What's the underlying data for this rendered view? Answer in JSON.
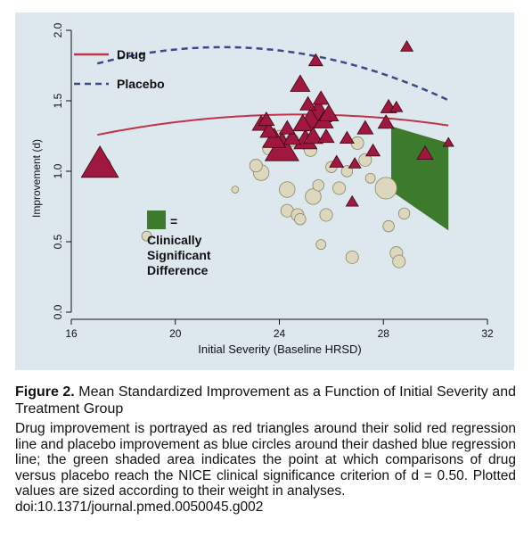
{
  "chart_data": {
    "type": "scatter",
    "xlabel": "Initial Severity (Baseline HRSD)",
    "ylabel": "Improvement (d)",
    "xlim": [
      16,
      32
    ],
    "ylim": [
      0,
      2
    ],
    "x_ticks": [
      16,
      20,
      24,
      28,
      32
    ],
    "y_ticks": [
      "0.0",
      "0.5",
      "1.0",
      "1.5",
      "2.0"
    ],
    "grid": false,
    "legend": {
      "placement": "top-left",
      "entries": [
        {
          "label": "Drug",
          "style": "solid",
          "color": "#c0334a"
        },
        {
          "label": "Placebo",
          "style": "dashed",
          "color": "#3a4a8a"
        }
      ]
    },
    "annotation": {
      "marker_text": "=",
      "lines": [
        "Clinically",
        "Significant",
        "Difference"
      ],
      "color": "#3c7a2c"
    },
    "shaded_region": {
      "x": [
        28.3,
        28.3,
        30.5,
        30.5
      ],
      "y": [
        1.32,
        0.86,
        0.58,
        1.2
      ],
      "color": "#3c7a2c"
    },
    "series": [
      {
        "name": "Drug",
        "marker": "triangle",
        "color": "#a01840",
        "regression": {
          "coef": [
            -0.06,
            0.118,
            -0.00238
          ],
          "x_range": [
            17,
            30.5
          ],
          "color": "#c0334a"
        },
        "points": [
          {
            "x": 17.1,
            "y": 1.04,
            "w": 9
          },
          {
            "x": 23.3,
            "y": 1.33,
            "w": 3.5
          },
          {
            "x": 23.5,
            "y": 1.36,
            "w": 3
          },
          {
            "x": 23.6,
            "y": 1.28,
            "w": 3.5
          },
          {
            "x": 23.8,
            "y": 1.22,
            "w": 5
          },
          {
            "x": 24.1,
            "y": 1.15,
            "w": 8
          },
          {
            "x": 24.3,
            "y": 1.3,
            "w": 3
          },
          {
            "x": 24.5,
            "y": 1.23,
            "w": 3.5
          },
          {
            "x": 24.8,
            "y": 1.61,
            "w": 4
          },
          {
            "x": 24.9,
            "y": 1.33,
            "w": 4
          },
          {
            "x": 25.0,
            "y": 1.21,
            "w": 5
          },
          {
            "x": 25.1,
            "y": 1.47,
            "w": 3
          },
          {
            "x": 25.2,
            "y": 1.36,
            "w": 5
          },
          {
            "x": 25.3,
            "y": 1.24,
            "w": 4
          },
          {
            "x": 25.4,
            "y": 1.78,
            "w": 2.5
          },
          {
            "x": 25.5,
            "y": 1.41,
            "w": 6
          },
          {
            "x": 25.6,
            "y": 1.51,
            "w": 3
          },
          {
            "x": 25.7,
            "y": 1.35,
            "w": 4
          },
          {
            "x": 25.8,
            "y": 1.24,
            "w": 3
          },
          {
            "x": 25.9,
            "y": 1.4,
            "w": 4
          },
          {
            "x": 26.2,
            "y": 1.06,
            "w": 2.5
          },
          {
            "x": 26.6,
            "y": 1.23,
            "w": 2.5
          },
          {
            "x": 26.8,
            "y": 0.78,
            "w": 2
          },
          {
            "x": 26.9,
            "y": 1.05,
            "w": 2
          },
          {
            "x": 27.3,
            "y": 1.3,
            "w": 3
          },
          {
            "x": 27.6,
            "y": 1.14,
            "w": 2.5
          },
          {
            "x": 28.1,
            "y": 1.34,
            "w": 3
          },
          {
            "x": 28.2,
            "y": 1.45,
            "w": 3
          },
          {
            "x": 28.5,
            "y": 1.45,
            "w": 2
          },
          {
            "x": 28.9,
            "y": 1.88,
            "w": 2
          },
          {
            "x": 29.6,
            "y": 1.12,
            "w": 3
          },
          {
            "x": 30.5,
            "y": 1.2,
            "w": 1.5
          }
        ]
      },
      {
        "name": "Placebo",
        "marker": "circle",
        "color": "#ddd8bd",
        "regression": {
          "coef": [
            -0.5,
            0.2182,
            -0.005
          ],
          "x_range": [
            17,
            30.5
          ],
          "color": "#3a4a8a"
        },
        "points": [
          {
            "x": 17.3,
            "y": 1.05,
            "w": 2.5
          },
          {
            "x": 18.9,
            "y": 0.54,
            "w": 2
          },
          {
            "x": 22.3,
            "y": 0.87,
            "w": 1
          },
          {
            "x": 23.1,
            "y": 1.04,
            "w": 3
          },
          {
            "x": 23.3,
            "y": 0.99,
            "w": 4
          },
          {
            "x": 23.6,
            "y": 1.16,
            "w": 3
          },
          {
            "x": 23.9,
            "y": 1.2,
            "w": 3
          },
          {
            "x": 24.0,
            "y": 1.25,
            "w": 2.5
          },
          {
            "x": 24.3,
            "y": 0.87,
            "w": 4
          },
          {
            "x": 24.3,
            "y": 0.72,
            "w": 3
          },
          {
            "x": 24.5,
            "y": 1.22,
            "w": 3
          },
          {
            "x": 24.7,
            "y": 0.69,
            "w": 3
          },
          {
            "x": 24.8,
            "y": 0.66,
            "w": 2.5
          },
          {
            "x": 25.0,
            "y": 1.2,
            "w": 3
          },
          {
            "x": 25.2,
            "y": 1.15,
            "w": 3
          },
          {
            "x": 25.3,
            "y": 0.82,
            "w": 4
          },
          {
            "x": 25.5,
            "y": 0.9,
            "w": 2.5
          },
          {
            "x": 25.6,
            "y": 0.48,
            "w": 2
          },
          {
            "x": 25.8,
            "y": 0.69,
            "w": 3
          },
          {
            "x": 26.0,
            "y": 1.03,
            "w": 2.5
          },
          {
            "x": 26.3,
            "y": 0.88,
            "w": 3
          },
          {
            "x": 26.6,
            "y": 1.0,
            "w": 2.5
          },
          {
            "x": 26.8,
            "y": 0.39,
            "w": 3
          },
          {
            "x": 27.0,
            "y": 1.2,
            "w": 3
          },
          {
            "x": 27.3,
            "y": 1.08,
            "w": 3
          },
          {
            "x": 27.5,
            "y": 0.95,
            "w": 2
          },
          {
            "x": 28.1,
            "y": 0.88,
            "w": 6
          },
          {
            "x": 28.2,
            "y": 0.61,
            "w": 2.5
          },
          {
            "x": 28.5,
            "y": 0.42,
            "w": 3
          },
          {
            "x": 28.6,
            "y": 0.36,
            "w": 3
          },
          {
            "x": 28.8,
            "y": 0.7,
            "w": 2.5
          }
        ]
      }
    ]
  },
  "caption": {
    "figure_label": "Figure 2.",
    "title": "Mean Standardized Improvement as a Function of Initial Severity and Treatment Group",
    "body": "Drug improvement is portrayed as red triangles around their solid red regression line and placebo improvement as blue circles around their dashed blue regression line; the green shaded area indicates the point at which comparisons of drug versus placebo reach the NICE clinical significance criterion of d = 0.50. Plotted values are sized according to their weight in analyses.",
    "doi": "doi:10.1371/journal.pmed.0050045.g002"
  }
}
